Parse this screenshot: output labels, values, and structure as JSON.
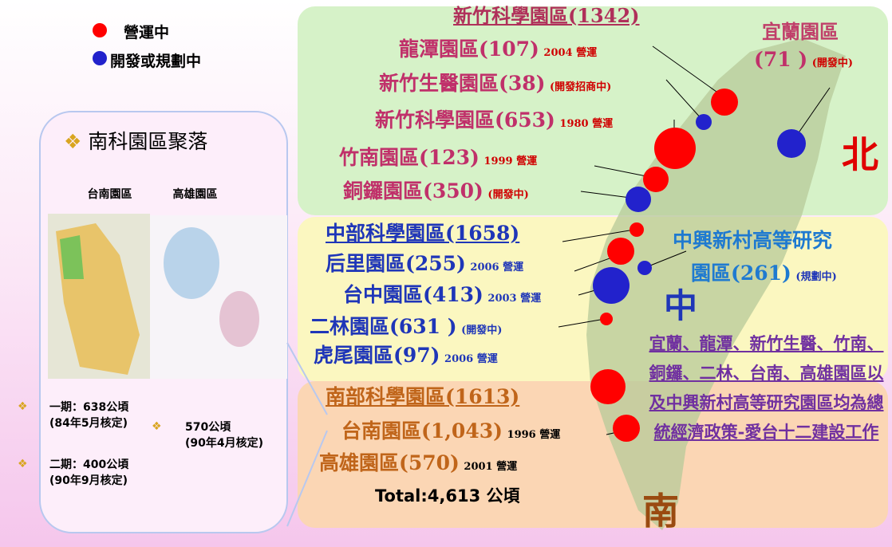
{
  "legend": {
    "operating": "營運中",
    "developing": "開發或規劃中"
  },
  "south_cluster": {
    "title": "南科園區聚落",
    "map_labels": [
      "台南園區",
      "高雄園區"
    ],
    "notes": [
      {
        "line1": "一期：638公頃",
        "line2": "(84年5月核定)"
      },
      {
        "line1": "570公頃",
        "line2": "(90年4月核定)"
      },
      {
        "line1": "二期：400公頃",
        "line2": "(90年9月核定)"
      }
    ]
  },
  "north": {
    "title": "新竹科學園區(1342)",
    "parks": [
      {
        "name": "龍潭園區(107)",
        "status": "2004 營運"
      },
      {
        "name": "新竹生醫園區(38)",
        "status": "(開發招商中)"
      },
      {
        "name": "新竹科學園區(653)",
        "status": "1980 營運"
      },
      {
        "name": "竹南園區(123)",
        "status": "1999 營運"
      },
      {
        "name": "銅鑼園區(350)",
        "status": "(開發中)"
      }
    ],
    "yilan": {
      "name": "宜蘭園區",
      "area": "(71 )",
      "status": "(開發中)"
    },
    "region": "北"
  },
  "central": {
    "title": "中部科學園區(1658)",
    "parks": [
      {
        "name": "后里園區(255)",
        "status": "2006 營運"
      },
      {
        "name": "台中園區(413)",
        "status": "2003 營運"
      },
      {
        "name": "二林園區(631 )",
        "status": "(開發中)"
      },
      {
        "name": "虎尾園區(97)",
        "status": "2006 營運"
      }
    ],
    "zhongxing": {
      "name": "中興新村高等研究",
      "name2": "園區(261)",
      "status": "(規劃中)"
    },
    "region": "中"
  },
  "southern": {
    "title": "南部科學園區(1613)",
    "parks": [
      {
        "name": "台南園區(1,043)",
        "status": "1996 營運"
      },
      {
        "name": "高雄園區(570)",
        "status": "2001 營運"
      }
    ],
    "total": "Total:4,613 公頃",
    "region": "南"
  },
  "note": "宜蘭、龍潭、新竹生醫、竹南、銅鑼、二林、台南、高雄園區以及中興新村高等研究園區均為總統經濟政策-愛台十二建設工作"
}
